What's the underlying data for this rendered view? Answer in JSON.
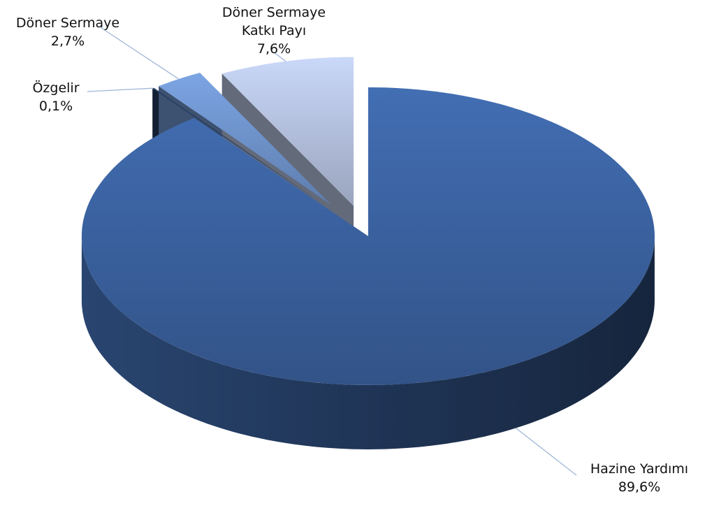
{
  "chart_data": {
    "type": "pie",
    "categories": [
      "Hazine Yardımı",
      "Özgelir",
      "Döner Sermaye",
      "Döner Sermaye Katkı Payı"
    ],
    "values": [
      89.6,
      0.1,
      2.7,
      7.6
    ],
    "value_labels": [
      "89,6%",
      "0,1%",
      "2,7%",
      "7,6%"
    ],
    "colors": [
      "#3b62a0",
      "#22395c",
      "#6f93cc",
      "#b4c1de"
    ]
  }
}
